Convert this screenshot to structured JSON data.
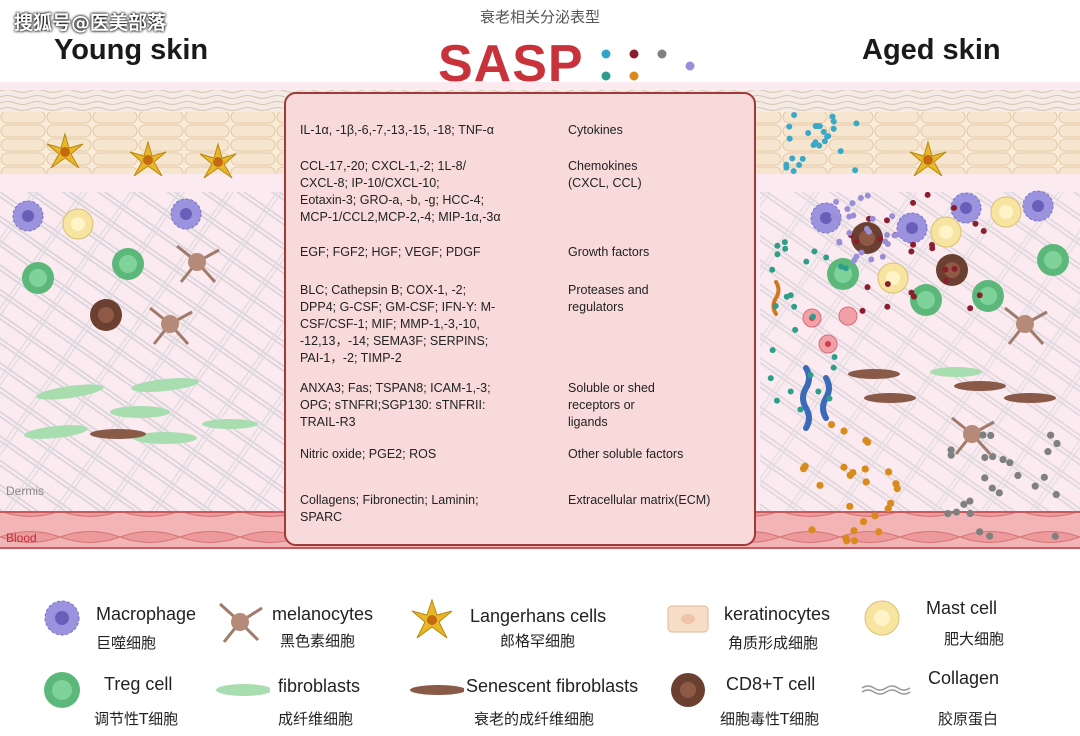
{
  "watermark": "搜狐号@医美部落",
  "header": {
    "young_title": "Young skin",
    "aged_title": "Aged skin",
    "subtitle": "衰老相关分泌表型",
    "main_title": "SASP",
    "dot_colors": [
      "#2ea6c9",
      "#8b1e2d",
      "#808080",
      "#2e9e8a",
      "#d98a1a",
      "#9a8fd6"
    ]
  },
  "sasp_table": [
    {
      "factors": [
        "IL-1α, -1β,-6,-7,-13,-15, -18; TNF-α"
      ],
      "category": [
        "Cytokines"
      ]
    },
    {
      "factors": [
        "CCL-17,-20; CXCL-1,-2; 1L-8/",
        "CXCL-8; IP-10/CXCL-10;",
        "Eotaxin-3; GRO-a, -b, -g; HCC-4;",
        "MCP-1/CCL2,MCP-2,-4; MIP-1α,-3α"
      ],
      "category": [
        "Chemokines",
        "(CXCL, CCL)"
      ]
    },
    {
      "factors": [
        "EGF; FGF2; HGF; VEGF; PDGF"
      ],
      "category": [
        "Growth factors"
      ]
    },
    {
      "factors": [
        "BLC; Cathepsin B; COX-1, -2;",
        "DPP4; G-CSF; GM-CSF; IFN-Y: M-",
        "CSF/CSF-1; MIF; MMP-1,-3,-10,",
        "-12,13，-14; SEMA3F; SERPINS;",
        "PAI-1，-2; TIMP-2"
      ],
      "category": [
        "Proteases and",
        "regulators"
      ]
    },
    {
      "factors": [
        "ANXA3; Fas; TSPAN8; ICAM-1,-3;",
        "OPG; sTNFRI;SGP130: sTNFRII:",
        "TRAIL-R3"
      ],
      "category": [
        "Soluble or shed",
        "receptors or",
        "ligands"
      ]
    },
    {
      "factors": [
        "Nitric oxide; PGE2; ROS"
      ],
      "category": [
        "Other soluble factors"
      ]
    },
    {
      "factors": [
        "Collagens; Fibronectin; Laminin;",
        "SPARC"
      ],
      "category": [
        "Extracellular matrix(ECM)"
      ]
    }
  ],
  "layer_labels": {
    "dermis": "Dermis",
    "blood": "Blood"
  },
  "legend": [
    {
      "en": "Macrophage",
      "zh": "巨噬细胞",
      "icon": "macrophage-icon"
    },
    {
      "en": "melanocytes",
      "zh": "黑色素细胞",
      "icon": "melanocyte-icon"
    },
    {
      "en": "Langerhans cells",
      "zh": "郎格罕细胞",
      "icon": "langerhans-icon"
    },
    {
      "en": "keratinocytes",
      "zh": "角质形成细胞",
      "icon": "keratinocyte-icon"
    },
    {
      "en": "Mast cell",
      "zh": "肥大细胞",
      "icon": "mast-cell-icon"
    },
    {
      "en": "Treg cell",
      "zh": "调节性T细胞",
      "icon": "treg-cell-icon"
    },
    {
      "en": "fibroblasts",
      "zh": "成纤维细胞",
      "icon": "fibroblast-icon"
    },
    {
      "en": "Senescent fibroblasts",
      "zh": "衰老的成纤维细胞",
      "icon": "senescent-fibroblast-icon"
    },
    {
      "en": "CD8+T cell",
      "zh": "细胞毒性T细胞",
      "icon": "cd8-t-cell-icon"
    },
    {
      "en": "Collagen",
      "zh": "胶原蛋白",
      "icon": "collagen-icon"
    }
  ],
  "colors": {
    "sasp_red": "#c8323a",
    "macrophage": "#8f86d9",
    "treg": "#4aa86a",
    "mast": "#f2dc8a",
    "cd8": "#6b4030",
    "fibroblast": "#a8ddb0",
    "senescent": "#8a5a48",
    "langerhans": "#e0b020",
    "melanocyte": "#a07a6a",
    "keratinocyte": "#f4dcc4",
    "blood_vessel": "#e8888a",
    "dermis": "#fbeaf0"
  }
}
